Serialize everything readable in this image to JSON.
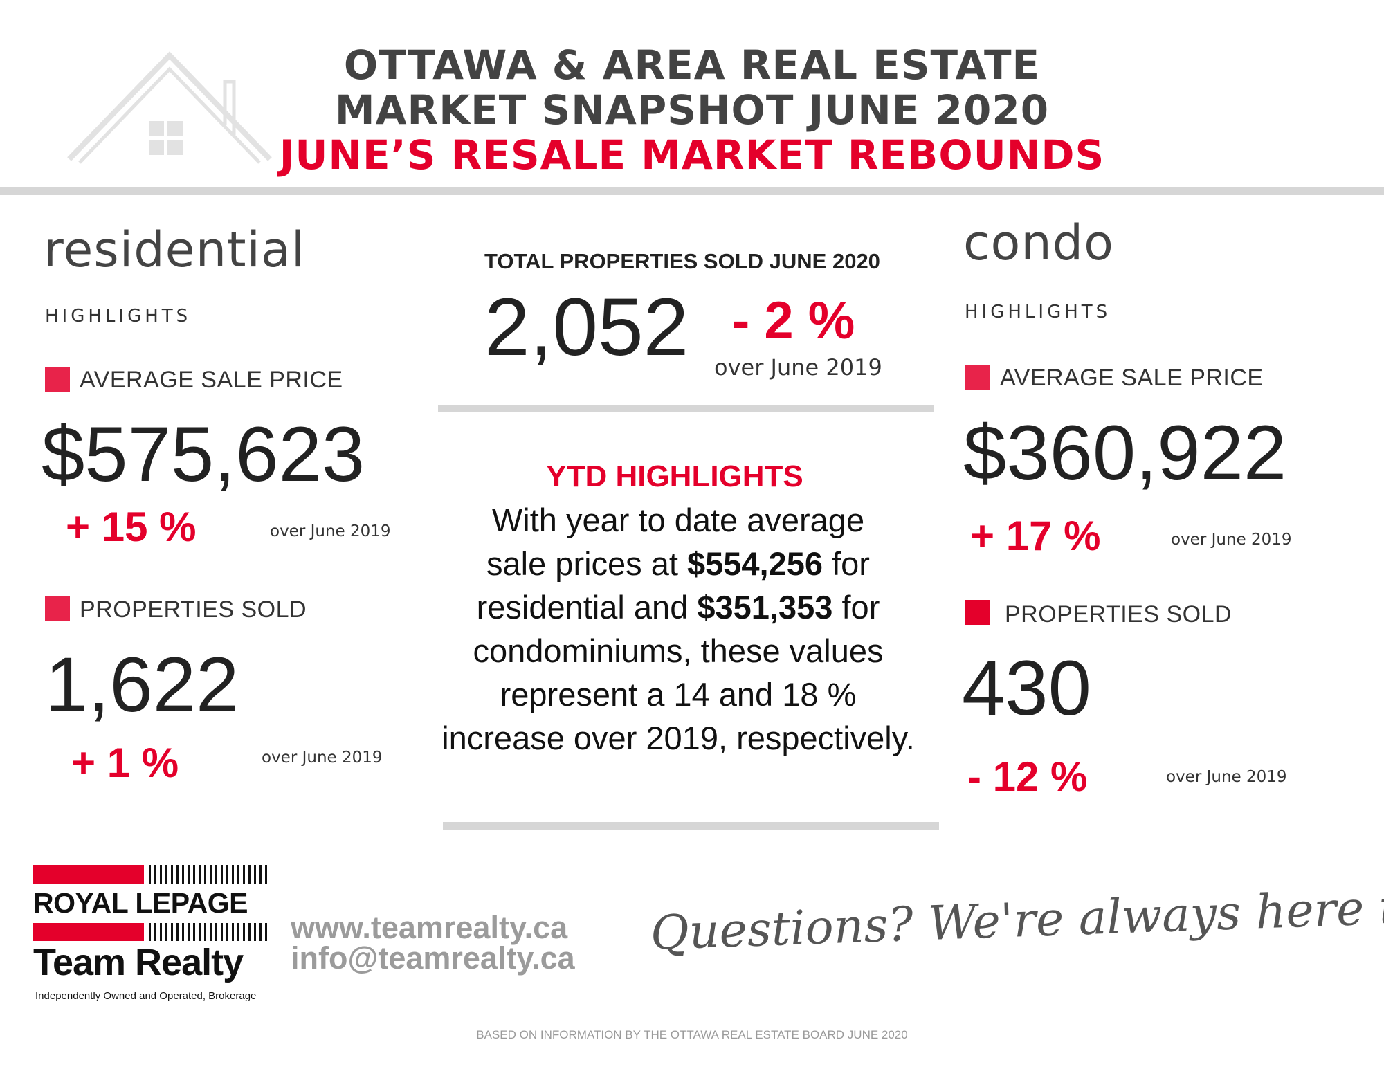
{
  "header": {
    "title_line1": "OTTAWA & AREA REAL ESTATE",
    "title_line2": "MARKET SNAPSHOT JUNE 2020",
    "title_line3": "JUNE’S RESALE MARKET REBOUNDS"
  },
  "residential": {
    "title": "residential",
    "highlights": "HIGHLIGHTS",
    "avg_label": "AVERAGE SALE PRICE",
    "avg_value": "$575,623",
    "avg_change": "+ 15 %",
    "avg_over": "over June  2019",
    "sold_label": "PROPERTIES SOLD",
    "sold_value": "1,622",
    "sold_change": "+ 1 %",
    "sold_over": "over June 2019"
  },
  "total": {
    "label": "TOTAL PROPERTIES SOLD JUNE 2020",
    "value": "2,052",
    "change": "- 2 %",
    "over": "over June 2019"
  },
  "ytd": {
    "title": "YTD HIGHLIGHTS",
    "p1": "With year to date average",
    "p2a": "sale prices at ",
    "p2b": "$554,256",
    "p2c": " for",
    "p3a": "residential and ",
    "p3b": "$351,353",
    "p3c": " for",
    "p4": "condominiums, these values",
    "p5": "represent a 14 and 18 %",
    "p6": "increase over 2019, respectively."
  },
  "condo": {
    "title": "condo",
    "highlights": "HIGHLIGHTS",
    "avg_label": "AVERAGE SALE PRICE",
    "avg_value": "$360,922",
    "avg_change": "+ 17 %",
    "avg_over": "over  June  2019",
    "sold_label": "PROPERTIES SOLD",
    "sold_value": "430",
    "sold_change": "- 12 %",
    "sold_over": "over June 2019"
  },
  "logo": {
    "line1": "ROYAL LEPAGE",
    "line2": "Team Realty",
    "tagline": "Independently Owned and Operated, Brokerage",
    "icon": "house-outline-icon"
  },
  "contact": {
    "website": "www.teamrealty.ca",
    "email": "info@teamrealty.ca"
  },
  "cta": "Questions? We're always here to help",
  "footer_note": "BASED ON INFORMATION BY THE OTTAWA REAL ESTATE BOARD JUNE 2020",
  "colors": {
    "accent": "#e4002b",
    "heading": "#434343",
    "divider": "#d6d6d6"
  }
}
